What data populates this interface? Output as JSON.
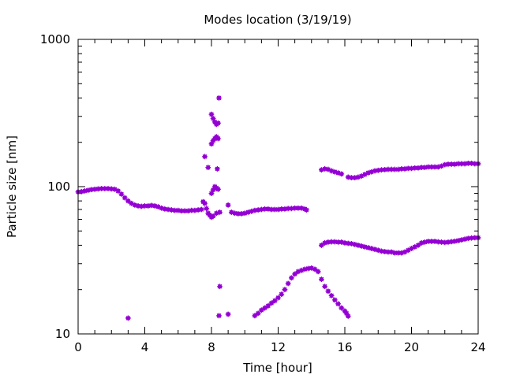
{
  "chart_data": {
    "type": "scatter",
    "title": "Modes location (3/19/19)",
    "xlabel": "Time [hour]",
    "ylabel": "Particle size [nm]",
    "xlim": [
      0,
      24
    ],
    "ylim": [
      10,
      1000
    ],
    "yscale": "log",
    "grid": false,
    "legend": "none",
    "marker_color": "#9400d3",
    "x_ticks": [
      0,
      4,
      8,
      12,
      16,
      20,
      24
    ],
    "x_tick_labels": [
      "0",
      "4",
      "8",
      "12",
      "16",
      "20",
      "24"
    ],
    "y_ticks": [
      10,
      100,
      1000
    ],
    "y_tick_labels": [
      "10",
      "100",
      "1000"
    ],
    "series": [
      {
        "values": [
          [
            0.0,
            92
          ],
          [
            0.2,
            92.5
          ],
          [
            0.4,
            93.5
          ],
          [
            0.6,
            94.5
          ],
          [
            0.8,
            95.5
          ],
          [
            1.0,
            96
          ],
          [
            1.2,
            96.5
          ],
          [
            1.4,
            97
          ],
          [
            1.6,
            97
          ],
          [
            1.8,
            97
          ],
          [
            2.0,
            96.5
          ],
          [
            2.2,
            96
          ],
          [
            2.4,
            93.5
          ],
          [
            2.6,
            89
          ],
          [
            2.8,
            84
          ],
          [
            3.0,
            80
          ],
          [
            3.2,
            77
          ],
          [
            3.4,
            75
          ],
          [
            3.6,
            74
          ],
          [
            3.8,
            73.5
          ],
          [
            4.0,
            74
          ],
          [
            4.2,
            74
          ],
          [
            4.4,
            74.5
          ],
          [
            4.6,
            74
          ],
          [
            4.8,
            73
          ],
          [
            5.0,
            71.5
          ],
          [
            5.2,
            70.5
          ],
          [
            5.4,
            70
          ],
          [
            5.6,
            69.5
          ],
          [
            5.8,
            69
          ],
          [
            6.0,
            69
          ],
          [
            6.2,
            68.5
          ],
          [
            6.4,
            68.5
          ],
          [
            6.6,
            68.5
          ],
          [
            6.8,
            69
          ],
          [
            7.0,
            69
          ],
          [
            7.2,
            69.5
          ],
          [
            7.4,
            70
          ],
          [
            7.5,
            79
          ],
          [
            7.6,
            77
          ],
          [
            7.7,
            71
          ],
          [
            7.8,
            66
          ],
          [
            7.9,
            64
          ],
          [
            8.0,
            62
          ],
          [
            8.1,
            63
          ],
          [
            8.3,
            66
          ],
          [
            8.5,
            67
          ],
          [
            9.0,
            75
          ],
          [
            9.2,
            67
          ],
          [
            9.4,
            66
          ],
          [
            9.6,
            65.5
          ],
          [
            9.8,
            65.5
          ],
          [
            10.0,
            66
          ],
          [
            10.2,
            67
          ],
          [
            10.4,
            68
          ],
          [
            10.6,
            69
          ],
          [
            10.8,
            69.5
          ],
          [
            11.0,
            70
          ],
          [
            11.2,
            70.5
          ],
          [
            11.4,
            70.5
          ],
          [
            11.6,
            70
          ],
          [
            11.8,
            70
          ],
          [
            12.0,
            70
          ],
          [
            12.2,
            70.5
          ],
          [
            12.4,
            70.5
          ],
          [
            12.6,
            71
          ],
          [
            12.8,
            71
          ],
          [
            13.0,
            71.5
          ],
          [
            13.2,
            71.5
          ],
          [
            13.4,
            71.5
          ],
          [
            13.6,
            70.5
          ],
          [
            13.7,
            69.5
          ],
          [
            14.6,
            130
          ],
          [
            14.8,
            132
          ],
          [
            15.0,
            131
          ],
          [
            15.2,
            128
          ],
          [
            15.4,
            126
          ],
          [
            15.6,
            124
          ],
          [
            15.8,
            122
          ],
          [
            16.2,
            116
          ],
          [
            16.4,
            115
          ],
          [
            16.6,
            115
          ],
          [
            16.8,
            116
          ],
          [
            17.0,
            118
          ],
          [
            17.2,
            121
          ],
          [
            17.4,
            124
          ],
          [
            17.6,
            126
          ],
          [
            17.8,
            128
          ],
          [
            18.0,
            129
          ],
          [
            18.2,
            130
          ],
          [
            18.4,
            130.5
          ],
          [
            18.6,
            131
          ],
          [
            18.8,
            131
          ],
          [
            19.0,
            131
          ],
          [
            19.2,
            131
          ],
          [
            19.4,
            132
          ],
          [
            19.6,
            132
          ],
          [
            19.8,
            133
          ],
          [
            20.0,
            133
          ],
          [
            20.2,
            134
          ],
          [
            20.4,
            134
          ],
          [
            20.6,
            135
          ],
          [
            20.8,
            135
          ],
          [
            21.0,
            136
          ],
          [
            21.2,
            136
          ],
          [
            21.4,
            136
          ],
          [
            21.6,
            136
          ],
          [
            21.8,
            138
          ],
          [
            22.0,
            141
          ],
          [
            22.2,
            142
          ],
          [
            22.4,
            142
          ],
          [
            22.6,
            142
          ],
          [
            22.8,
            143
          ],
          [
            23.0,
            143
          ],
          [
            23.2,
            143
          ],
          [
            23.4,
            144
          ],
          [
            23.6,
            144
          ],
          [
            23.8,
            143
          ],
          [
            24.0,
            143
          ],
          [
            14.6,
            40
          ],
          [
            14.8,
            41.5
          ],
          [
            15.0,
            42
          ],
          [
            15.2,
            42.2
          ],
          [
            15.4,
            42.2
          ],
          [
            15.6,
            42
          ],
          [
            15.8,
            42
          ],
          [
            16.0,
            41.5
          ],
          [
            16.2,
            41.2
          ],
          [
            16.4,
            41
          ],
          [
            16.6,
            40.5
          ],
          [
            16.8,
            40
          ],
          [
            17.0,
            39.5
          ],
          [
            17.2,
            39
          ],
          [
            17.4,
            38.5
          ],
          [
            17.6,
            38
          ],
          [
            17.8,
            37.5
          ],
          [
            18.0,
            37
          ],
          [
            18.2,
            36.5
          ],
          [
            18.4,
            36.2
          ],
          [
            18.6,
            36
          ],
          [
            18.8,
            36
          ],
          [
            19.0,
            35.5
          ],
          [
            19.2,
            35.5
          ],
          [
            19.4,
            35.5
          ],
          [
            19.6,
            36
          ],
          [
            19.8,
            37
          ],
          [
            20.0,
            38
          ],
          [
            20.2,
            39
          ],
          [
            20.4,
            40
          ],
          [
            20.6,
            41.5
          ],
          [
            20.8,
            42
          ],
          [
            21.0,
            42.5
          ],
          [
            21.2,
            42.5
          ],
          [
            21.4,
            42.5
          ],
          [
            21.6,
            42.2
          ],
          [
            21.8,
            42
          ],
          [
            22.0,
            41.8
          ],
          [
            22.2,
            42
          ],
          [
            22.4,
            42.3
          ],
          [
            22.6,
            42.6
          ],
          [
            22.8,
            43
          ],
          [
            23.0,
            43.5
          ],
          [
            23.2,
            44
          ],
          [
            23.4,
            44.5
          ],
          [
            23.6,
            44.8
          ],
          [
            23.8,
            45
          ],
          [
            24.0,
            45
          ],
          [
            10.6,
            13.3
          ],
          [
            10.8,
            13.8
          ],
          [
            11.0,
            14.5
          ],
          [
            11.2,
            15
          ],
          [
            11.4,
            15.5
          ],
          [
            11.6,
            16.2
          ],
          [
            11.8,
            16.8
          ],
          [
            12.0,
            17.6
          ],
          [
            12.2,
            18.6
          ],
          [
            12.4,
            20
          ],
          [
            12.6,
            22
          ],
          [
            12.8,
            24
          ],
          [
            13.0,
            25.5
          ],
          [
            13.2,
            26.5
          ],
          [
            13.4,
            27
          ],
          [
            13.6,
            27.5
          ],
          [
            13.8,
            27.8
          ],
          [
            14.0,
            28
          ],
          [
            14.2,
            27.5
          ],
          [
            14.4,
            26.5
          ],
          [
            14.6,
            23.5
          ],
          [
            14.8,
            21
          ],
          [
            15.0,
            19.5
          ],
          [
            15.2,
            18.2
          ],
          [
            15.4,
            17
          ],
          [
            15.6,
            16
          ],
          [
            15.8,
            15
          ],
          [
            16.0,
            14.3
          ],
          [
            16.1,
            13.8
          ],
          [
            16.2,
            13.2
          ],
          [
            3.0,
            12.8
          ],
          [
            7.6,
            160
          ],
          [
            7.8,
            135
          ],
          [
            8.0,
            90
          ],
          [
            8.1,
            95
          ],
          [
            8.2,
            100
          ],
          [
            8.3,
            98
          ],
          [
            8.4,
            96
          ],
          [
            8.0,
            310
          ],
          [
            8.1,
            290
          ],
          [
            8.2,
            275
          ],
          [
            8.3,
            265
          ],
          [
            8.4,
            270
          ],
          [
            8.45,
            400
          ],
          [
            8.0,
            195
          ],
          [
            8.1,
            205
          ],
          [
            8.2,
            212
          ],
          [
            8.3,
            218
          ],
          [
            8.4,
            212
          ],
          [
            8.35,
            132
          ],
          [
            8.5,
            21
          ],
          [
            8.45,
            13.3
          ],
          [
            9.0,
            13.6
          ]
        ]
      }
    ]
  }
}
